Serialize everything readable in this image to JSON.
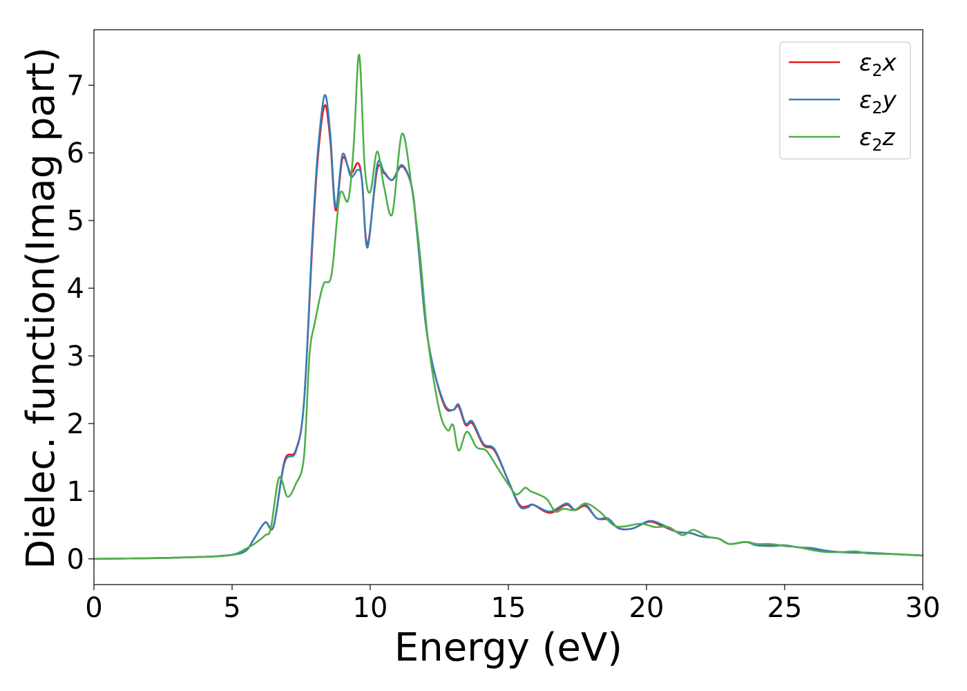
{
  "chart_data": {
    "type": "line",
    "xlabel": "Energy (eV)",
    "ylabel": "Dielec. function(Imag part)",
    "xlim": [
      0,
      30
    ],
    "ylim": [
      -0.38,
      7.82
    ],
    "xticks": [
      0,
      5,
      10,
      15,
      20,
      25,
      30
    ],
    "xtick_labels": [
      "0",
      "5",
      "10",
      "15",
      "20",
      "25",
      "30"
    ],
    "yticks": [
      0,
      1,
      2,
      3,
      4,
      5,
      6,
      7
    ],
    "ytick_labels": [
      "0",
      "1",
      "2",
      "3",
      "4",
      "5",
      "6",
      "7"
    ],
    "grid": false,
    "legend_position": "top-right",
    "series": [
      {
        "name": "ε2x",
        "label_main": "ε",
        "label_sub": "2",
        "label_suffix": "x",
        "color": "#e41a1c",
        "x": [
          0,
          2,
          4,
          5,
          5.5,
          5.8,
          6.2,
          6.5,
          6.9,
          7.3,
          7.6,
          7.9,
          8.1,
          8.35,
          8.55,
          8.75,
          9.0,
          9.3,
          9.55,
          9.7,
          9.9,
          10.25,
          10.5,
          10.8,
          11.15,
          11.5,
          11.7,
          12.0,
          12.3,
          12.7,
          13.0,
          13.2,
          13.45,
          13.7,
          14.1,
          14.5,
          15.0,
          15.4,
          15.7,
          15.9,
          16.5,
          17.1,
          17.4,
          17.8,
          18.2,
          18.6,
          19.0,
          19.5,
          20.1,
          20.6,
          21.1,
          21.6,
          22.0,
          22.6,
          23.0,
          23.6,
          24.0,
          24.6,
          25.0,
          25.5,
          26.0,
          26.5,
          27.0,
          27.5,
          28.0,
          29.0,
          30.0
        ],
        "y": [
          0.0,
          0.01,
          0.03,
          0.06,
          0.12,
          0.3,
          0.54,
          0.48,
          1.45,
          1.6,
          2.3,
          4.6,
          5.9,
          6.7,
          6.2,
          5.15,
          5.92,
          5.7,
          5.85,
          5.6,
          4.65,
          5.75,
          5.7,
          5.6,
          5.8,
          5.5,
          4.8,
          3.5,
          2.8,
          2.25,
          2.2,
          2.25,
          1.98,
          2.0,
          1.68,
          1.6,
          1.15,
          0.8,
          0.78,
          0.8,
          0.68,
          0.8,
          0.72,
          0.78,
          0.6,
          0.58,
          0.45,
          0.45,
          0.55,
          0.48,
          0.4,
          0.38,
          0.33,
          0.3,
          0.22,
          0.25,
          0.2,
          0.2,
          0.2,
          0.17,
          0.15,
          0.12,
          0.1,
          0.1,
          0.09,
          0.07,
          0.05
        ]
      },
      {
        "name": "ε2y",
        "label_main": "ε",
        "label_sub": "2",
        "label_suffix": "y",
        "color": "#377eb8",
        "x": [
          0,
          2,
          4,
          5,
          5.5,
          5.8,
          6.2,
          6.5,
          6.9,
          7.3,
          7.6,
          7.9,
          8.1,
          8.35,
          8.55,
          8.75,
          9.0,
          9.3,
          9.55,
          9.7,
          9.9,
          10.25,
          10.5,
          10.8,
          11.15,
          11.5,
          11.7,
          12.0,
          12.3,
          12.7,
          13.0,
          13.2,
          13.45,
          13.7,
          14.1,
          14.5,
          15.0,
          15.4,
          15.7,
          15.9,
          16.5,
          17.1,
          17.4,
          17.8,
          18.2,
          18.6,
          19.0,
          19.5,
          20.1,
          20.6,
          21.1,
          21.6,
          22.0,
          22.6,
          23.0,
          23.6,
          24.0,
          24.6,
          25.0,
          25.5,
          26.0,
          26.5,
          27.0,
          27.5,
          28.0,
          29.0,
          30.0
        ],
        "y": [
          0.0,
          0.01,
          0.03,
          0.06,
          0.12,
          0.3,
          0.54,
          0.48,
          1.42,
          1.58,
          2.3,
          4.7,
          6.0,
          6.85,
          6.3,
          5.2,
          5.98,
          5.65,
          5.75,
          5.6,
          4.6,
          5.82,
          5.72,
          5.6,
          5.82,
          5.5,
          4.8,
          3.5,
          2.8,
          2.28,
          2.2,
          2.28,
          2.0,
          2.03,
          1.7,
          1.62,
          1.15,
          0.78,
          0.76,
          0.8,
          0.7,
          0.82,
          0.73,
          0.8,
          0.6,
          0.6,
          0.45,
          0.45,
          0.56,
          0.5,
          0.4,
          0.38,
          0.33,
          0.3,
          0.22,
          0.25,
          0.2,
          0.19,
          0.2,
          0.17,
          0.16,
          0.12,
          0.1,
          0.09,
          0.09,
          0.07,
          0.05
        ]
      },
      {
        "name": "ε2z",
        "label_main": "ε",
        "label_sub": "2",
        "label_suffix": "z",
        "color": "#4daf4a",
        "x": [
          0,
          2,
          4,
          5,
          5.5,
          5.8,
          6.2,
          6.4,
          6.7,
          7.0,
          7.3,
          7.6,
          7.8,
          8.0,
          8.3,
          8.6,
          8.9,
          9.2,
          9.4,
          9.6,
          9.8,
          10.0,
          10.25,
          10.5,
          10.8,
          11.15,
          11.5,
          11.8,
          12.1,
          12.5,
          12.8,
          13.0,
          13.2,
          13.5,
          13.85,
          14.2,
          14.6,
          15.0,
          15.3,
          15.6,
          15.8,
          16.1,
          16.4,
          16.7,
          17.0,
          17.4,
          17.8,
          18.3,
          18.8,
          19.2,
          19.8,
          20.3,
          20.8,
          21.3,
          21.7,
          22.2,
          22.6,
          23.0,
          23.6,
          24.0,
          24.5,
          25.0,
          25.5,
          26.0,
          26.5,
          27.0,
          27.6,
          28.0,
          29.0,
          30.0
        ],
        "y": [
          0.0,
          0.01,
          0.03,
          0.06,
          0.15,
          0.22,
          0.35,
          0.45,
          1.2,
          0.92,
          1.1,
          1.5,
          3.0,
          3.5,
          4.05,
          4.2,
          5.38,
          5.3,
          6.1,
          7.45,
          5.8,
          5.42,
          6.02,
          5.5,
          5.1,
          6.28,
          5.5,
          4.5,
          3.2,
          2.2,
          1.9,
          1.98,
          1.6,
          1.88,
          1.65,
          1.6,
          1.35,
          1.1,
          0.95,
          1.05,
          1.0,
          0.95,
          0.88,
          0.7,
          0.74,
          0.72,
          0.82,
          0.7,
          0.5,
          0.48,
          0.52,
          0.47,
          0.47,
          0.35,
          0.43,
          0.33,
          0.3,
          0.22,
          0.25,
          0.22,
          0.22,
          0.19,
          0.17,
          0.13,
          0.1,
          0.1,
          0.11,
          0.08,
          0.07,
          0.05
        ]
      }
    ]
  }
}
